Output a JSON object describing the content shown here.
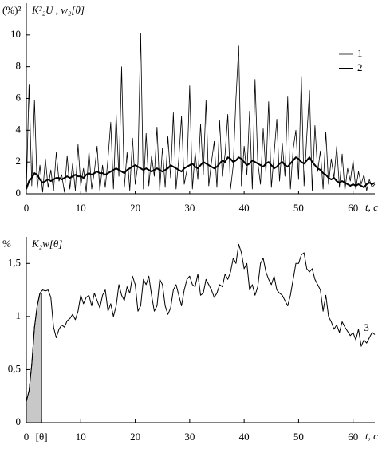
{
  "chart_data": [
    {
      "type": "line",
      "y_unit": "(%)²",
      "y_label": "K²₂U , w₂[θ]",
      "x_label": "t, c",
      "xlim": [
        0,
        64
      ],
      "ylim": [
        0,
        12
      ],
      "xticks": [
        0,
        10,
        20,
        30,
        40,
        50,
        60
      ],
      "yticks": [
        0,
        2,
        4,
        6,
        8,
        10
      ],
      "legend": "upper right",
      "x": [
        0,
        0.5,
        1,
        1.5,
        2,
        2.5,
        3,
        3.5,
        4,
        4.5,
        5,
        5.5,
        6,
        6.5,
        7,
        7.5,
        8,
        8.5,
        9,
        9.5,
        10,
        10.5,
        11,
        11.5,
        12,
        12.5,
        13,
        13.5,
        14,
        14.5,
        15,
        15.5,
        16,
        16.5,
        17,
        17.5,
        18,
        18.5,
        19,
        19.5,
        20,
        20.5,
        21,
        21.5,
        22,
        22.5,
        23,
        23.5,
        24,
        24.5,
        25,
        25.5,
        26,
        26.5,
        27,
        27.5,
        28,
        28.5,
        29,
        29.5,
        30,
        30.5,
        31,
        31.5,
        32,
        32.5,
        33,
        33.5,
        34,
        34.5,
        35,
        35.5,
        36,
        36.5,
        37,
        37.5,
        38,
        38.5,
        39,
        39.5,
        40,
        40.5,
        41,
        41.5,
        42,
        42.5,
        43,
        43.5,
        44,
        44.5,
        45,
        45.5,
        46,
        46.5,
        47,
        47.5,
        48,
        48.5,
        49,
        49.5,
        50,
        50.5,
        51,
        51.5,
        52,
        52.5,
        53,
        53.5,
        54,
        54.5,
        55,
        55.5,
        56,
        56.5,
        57,
        57.5,
        58,
        58.5,
        59,
        59.5,
        60,
        60.5,
        61,
        61.5,
        62,
        62.5,
        63,
        63.5,
        64
      ],
      "series": [
        {
          "name": "1",
          "color": "#000000",
          "width": 0.8,
          "values": [
            0.2,
            6.9,
            0.5,
            5.9,
            0.3,
            1.8,
            0.1,
            2.2,
            0.4,
            1.5,
            0.2,
            2.6,
            0.8,
            1.2,
            0.1,
            2.4,
            0.3,
            1.9,
            0.2,
            3.1,
            0.5,
            1.6,
            0.1,
            2.7,
            0.3,
            1.4,
            3.0,
            0.2,
            1.8,
            0.4,
            2.2,
            4.5,
            0.3,
            5.0,
            1.1,
            8.0,
            0.4,
            2.6,
            0.2,
            3.5,
            0.6,
            1.9,
            10.1,
            0.3,
            3.8,
            0.5,
            2.4,
            1.1,
            4.2,
            0.2,
            2.9,
            0.4,
            3.6,
            1.0,
            5.1,
            0.3,
            2.2,
            4.9,
            0.6,
            1.5,
            6.8,
            0.3,
            2.6,
            0.9,
            4.4,
            1.2,
            5.9,
            0.5,
            2.0,
            3.3,
            0.4,
            4.6,
            1.1,
            2.5,
            5.0,
            0.3,
            1.8,
            6.0,
            9.3,
            0.5,
            3.0,
            1.2,
            5.2,
            0.3,
            7.2,
            2.0,
            0.6,
            4.1,
            1.3,
            5.8,
            0.4,
            2.5,
            4.7,
            0.8,
            3.2,
            1.1,
            6.1,
            0.3,
            2.8,
            4.0,
            0.9,
            7.4,
            0.5,
            3.6,
            6.5,
            0.2,
            4.3,
            1.4,
            2.7,
            0.3,
            3.9,
            0.6,
            2.2,
            1.0,
            3.0,
            0.4,
            2.5,
            0.2,
            1.6,
            0.8,
            2.1,
            0.3,
            1.4,
            0.6,
            1.2,
            0.2,
            0.9,
            0.4,
            0.6
          ]
        },
        {
          "name": "2",
          "color": "#000000",
          "width": 2,
          "values": [
            0.3,
            0.8,
            1.0,
            1.3,
            1.2,
            0.9,
            0.7,
            0.8,
            0.9,
            0.8,
            0.9,
            1.0,
            1.0,
            0.9,
            1.0,
            1.1,
            1.0,
            1.1,
            1.2,
            1.1,
            1.1,
            1.0,
            1.2,
            1.3,
            1.2,
            1.3,
            1.4,
            1.3,
            1.3,
            1.2,
            1.3,
            1.4,
            1.5,
            1.6,
            1.5,
            1.4,
            1.3,
            1.5,
            1.6,
            1.7,
            1.8,
            1.7,
            1.6,
            1.5,
            1.6,
            1.5,
            1.4,
            1.5,
            1.6,
            1.5,
            1.4,
            1.5,
            1.6,
            1.8,
            1.7,
            1.6,
            1.5,
            1.4,
            1.6,
            1.7,
            1.8,
            1.9,
            1.7,
            1.6,
            1.8,
            2.0,
            1.9,
            1.8,
            1.7,
            1.6,
            1.7,
            1.9,
            2.1,
            2.0,
            2.3,
            2.2,
            2.0,
            2.1,
            2.3,
            2.2,
            2.0,
            1.8,
            1.9,
            2.1,
            2.0,
            1.9,
            1.8,
            1.7,
            1.9,
            2.0,
            1.8,
            1.6,
            1.7,
            1.9,
            2.0,
            1.8,
            1.7,
            1.9,
            2.1,
            2.3,
            2.2,
            2.0,
            1.9,
            2.1,
            2.3,
            2.0,
            1.8,
            1.6,
            1.5,
            1.3,
            1.2,
            1.0,
            0.9,
            1.0,
            0.8,
            0.7,
            0.8,
            0.7,
            0.6,
            0.5,
            0.6,
            0.5,
            0.6,
            0.5,
            0.4,
            0.6,
            0.7,
            0.6,
            0.7
          ]
        }
      ]
    },
    {
      "type": "line",
      "y_unit": "%",
      "y_label": "K₂w[θ]",
      "x_label": "t, c",
      "xlim": [
        0,
        64
      ],
      "ylim": [
        0,
        1.75
      ],
      "xticks": [
        0,
        {
          "value": 2.8,
          "label": "[θ]"
        },
        10,
        20,
        30,
        40,
        50,
        60
      ],
      "yticks": [
        0,
        {
          "value": 0.5,
          "label": "0,5"
        },
        1,
        {
          "value": 1.5,
          "label": "1,5"
        }
      ],
      "shaded": true,
      "shade_color": "#c8c8c8",
      "x": [
        0,
        0.5,
        1,
        1.5,
        2,
        2.5,
        3,
        3.5,
        4,
        4.5,
        5,
        5.5,
        6,
        6.5,
        7,
        7.5,
        8,
        8.5,
        9,
        9.5,
        10,
        10.5,
        11,
        11.5,
        12,
        12.5,
        13,
        13.5,
        14,
        14.5,
        15,
        15.5,
        16,
        16.5,
        17,
        17.5,
        18,
        18.5,
        19,
        19.5,
        20,
        20.5,
        21,
        21.5,
        22,
        22.5,
        23,
        23.5,
        24,
        24.5,
        25,
        25.5,
        26,
        26.5,
        27,
        27.5,
        28,
        28.5,
        29,
        29.5,
        30,
        30.5,
        31,
        31.5,
        32,
        32.5,
        33,
        33.5,
        34,
        34.5,
        35,
        35.5,
        36,
        36.5,
        37,
        37.5,
        38,
        38.5,
        39,
        39.5,
        40,
        40.5,
        41,
        41.5,
        42,
        42.5,
        43,
        43.5,
        44,
        44.5,
        45,
        45.5,
        46,
        46.5,
        47,
        47.5,
        48,
        48.5,
        49,
        49.5,
        50,
        50.5,
        51,
        51.5,
        52,
        52.5,
        53,
        53.5,
        54,
        54.5,
        55,
        55.5,
        56,
        56.5,
        57,
        57.5,
        58,
        58.5,
        59,
        59.5,
        60,
        60.5,
        61,
        61.5,
        62,
        62.5,
        63,
        63.5,
        64
      ],
      "series": [
        {
          "name": "3",
          "color": "#000000",
          "width": 1,
          "values": [
            0.2,
            0.3,
            0.55,
            0.9,
            1.1,
            1.22,
            1.25,
            1.24,
            1.25,
            1.18,
            0.9,
            0.8,
            0.88,
            0.92,
            0.9,
            0.96,
            0.98,
            1.02,
            0.97,
            1.05,
            1.2,
            1.12,
            1.18,
            1.2,
            1.1,
            1.22,
            1.15,
            1.08,
            1.2,
            1.25,
            1.05,
            1.12,
            1.0,
            1.1,
            1.3,
            1.2,
            1.15,
            1.28,
            1.22,
            1.38,
            1.3,
            1.05,
            1.1,
            1.35,
            1.3,
            1.38,
            1.2,
            1.05,
            1.1,
            1.35,
            1.3,
            1.1,
            1.02,
            1.08,
            1.25,
            1.3,
            1.2,
            1.1,
            1.25,
            1.35,
            1.38,
            1.3,
            1.28,
            1.4,
            1.2,
            1.22,
            1.35,
            1.3,
            1.25,
            1.18,
            1.22,
            1.3,
            1.28,
            1.4,
            1.35,
            1.42,
            1.55,
            1.5,
            1.68,
            1.6,
            1.45,
            1.5,
            1.25,
            1.3,
            1.2,
            1.28,
            1.5,
            1.55,
            1.42,
            1.35,
            1.3,
            1.38,
            1.25,
            1.22,
            1.2,
            1.15,
            1.1,
            1.2,
            1.35,
            1.5,
            1.5,
            1.58,
            1.6,
            1.45,
            1.42,
            1.45,
            1.35,
            1.3,
            1.25,
            1.05,
            1.2,
            1.0,
            0.95,
            0.88,
            0.92,
            0.85,
            0.95,
            0.9,
            0.86,
            0.82,
            0.85,
            0.78,
            0.88,
            0.72,
            0.78,
            0.75,
            0.8,
            0.85,
            0.83
          ]
        }
      ]
    }
  ]
}
